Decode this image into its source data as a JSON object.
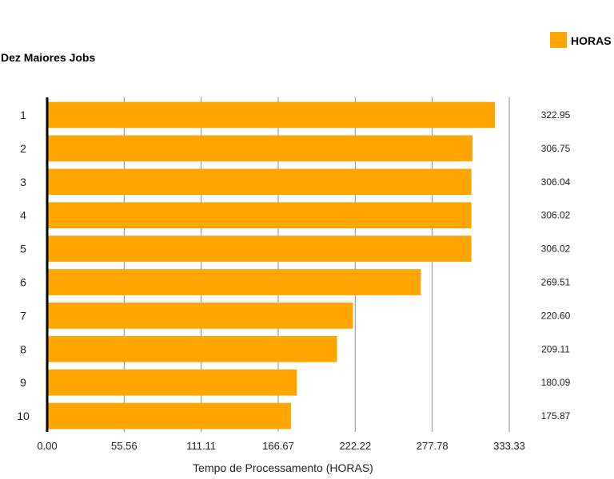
{
  "chart_data": {
    "type": "bar",
    "orientation": "horizontal",
    "title": "Dez Maiores Jobs",
    "xlabel": "Tempo de Processamento (HORAS)",
    "ylabel": "",
    "legend": {
      "position": "top-right",
      "entries": [
        "HORAS"
      ]
    },
    "grid": true,
    "xlim": [
      0,
      333.33
    ],
    "xticks": [
      "0.00",
      "55.56",
      "111.11",
      "166.67",
      "222.22",
      "277.78",
      "333.33"
    ],
    "categories": [
      "1",
      "2",
      "3",
      "4",
      "5",
      "6",
      "7",
      "8",
      "9",
      "10"
    ],
    "series": [
      {
        "name": "HORAS",
        "color": "#FFA500",
        "values": [
          322.95,
          306.75,
          306.04,
          306.02,
          306.02,
          269.51,
          220.6,
          209.11,
          180.09,
          175.87
        ],
        "labels": [
          "322.95",
          "306.75",
          "306.04",
          "306.02",
          "306.02",
          "269.51",
          "220.60",
          "209.11",
          "180.09",
          "175.87"
        ]
      }
    ]
  }
}
